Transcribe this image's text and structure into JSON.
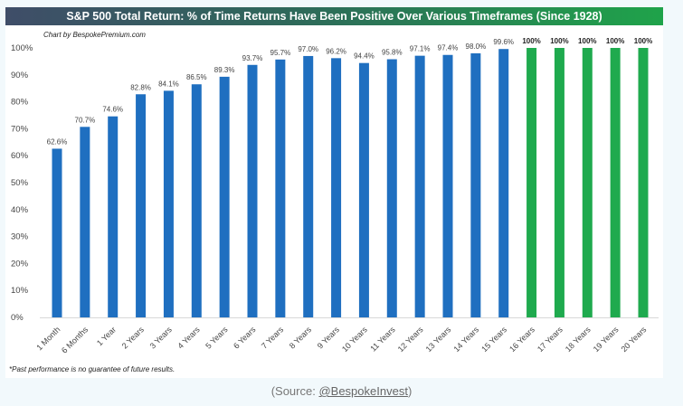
{
  "chart_data": {
    "type": "bar",
    "title": "S&P 500 Total Return: % of Time Returns Have Been Positive Over Various Timeframes (Since 1928)",
    "subtitle": "Chart by BespokePremium.com",
    "categories": [
      "1 Month",
      "6 Months",
      "1 Year",
      "2 Years",
      "3 Years",
      "4 Years",
      "5 Years",
      "6 Years",
      "7 Years",
      "8 Years",
      "9 Years",
      "10 Years",
      "11 Years",
      "12 Years",
      "13 Years",
      "14 Years",
      "15 Years",
      "16 Years",
      "17 Years",
      "18 Years",
      "19 Years",
      "20 Years"
    ],
    "values": [
      62.6,
      70.7,
      74.6,
      82.8,
      84.1,
      86.5,
      89.3,
      93.7,
      95.7,
      97.0,
      96.2,
      94.4,
      95.8,
      97.1,
      97.4,
      98.0,
      99.6,
      100,
      100,
      100,
      100,
      100
    ],
    "data_labels": [
      "62.6%",
      "70.7%",
      "74.6%",
      "82.8%",
      "84.1%",
      "86.5%",
      "89.3%",
      "93.7%",
      "95.7%",
      "97.0%",
      "96.2%",
      "94.4%",
      "95.8%",
      "97.1%",
      "97.4%",
      "98.0%",
      "99.6%",
      "100%",
      "100%",
      "100%",
      "100%",
      "100%"
    ],
    "ylim": [
      0,
      100
    ],
    "yticks": [
      "0%",
      "10%",
      "20%",
      "30%",
      "40%",
      "50%",
      "60%",
      "70%",
      "80%",
      "90%",
      "100%"
    ],
    "grid": false,
    "colors": {
      "below_100": "#1f6fc0",
      "at_100": "#1faa4e"
    },
    "xlabel": "",
    "ylabel": ""
  },
  "footnote": "*Past performance is no guarantee of future results.",
  "source": {
    "prefix": "(Source: ",
    "link": "@BespokeInvest",
    "suffix": ")"
  }
}
